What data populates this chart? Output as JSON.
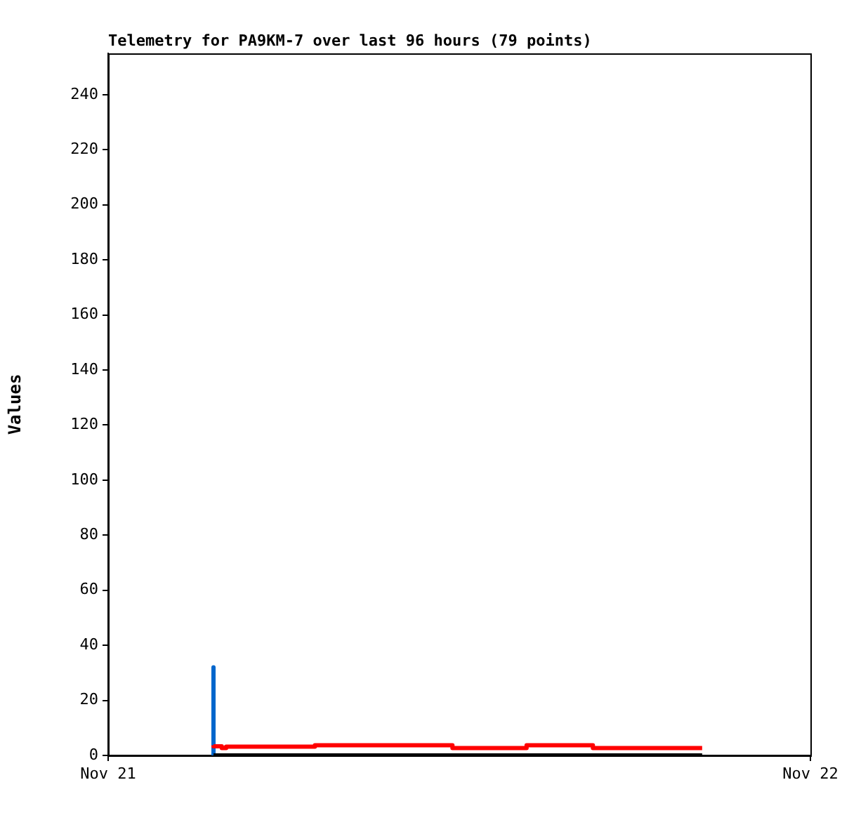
{
  "chart_data": {
    "type": "line",
    "title": "Telemetry for PA9KM-7 over last 96 hours (79 points)",
    "ylabel": "Values",
    "xlim": [
      "--11-21",
      "--11-22"
    ],
    "xticks": [
      {
        "value": "--11-21",
        "label": "Nov 21"
      },
      {
        "value": "--11-22",
        "label": "Nov 22"
      }
    ],
    "ylim": [
      0,
      255
    ],
    "yticks": [
      0,
      20,
      40,
      60,
      80,
      100,
      120,
      140,
      160,
      180,
      200,
      220,
      240
    ],
    "grid": false,
    "legend": false,
    "marker": "none",
    "series": [
      {
        "color": "#000000",
        "x": [
          "--11-21T03:36",
          "--11-21T20:18"
        ],
        "values": [
          0,
          0
        ]
      },
      {
        "type": "step",
        "color": "#ff0000",
        "x": [
          "--11-21T03:36",
          "--11-21T03:53",
          "--11-21T04:02",
          "--11-21T07:04",
          "--11-21T11:46",
          "--11-21T14:18",
          "--11-21T16:34",
          "--11-21T16:48",
          "--11-21T20:18"
        ],
        "values": [
          3.7,
          3.3,
          2.7,
          3.2,
          3.7,
          2.7,
          3.7,
          2.7,
          2.7
        ]
      },
      {
        "color": "#0066cc",
        "x": [
          "--11-21T03:36",
          "--11-21T03:36"
        ],
        "values": [
          32,
          0
        ]
      }
    ]
  }
}
